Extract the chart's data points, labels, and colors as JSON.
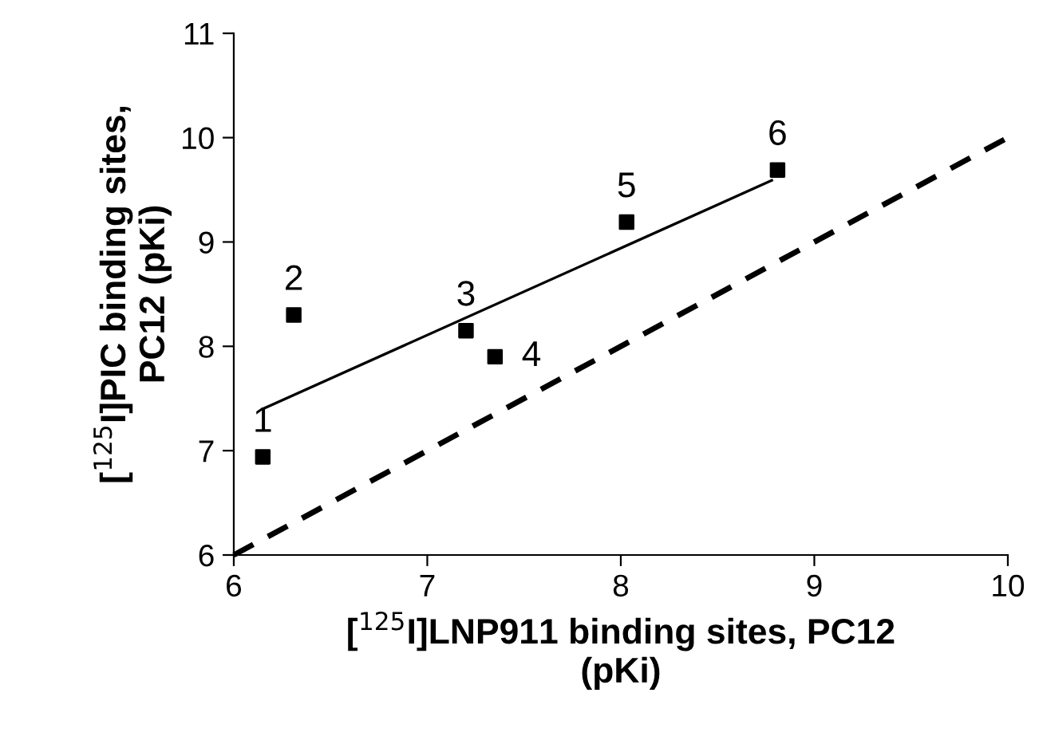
{
  "chart_data": {
    "type": "scatter",
    "xlabel": "[$^{125}$I]LNP911 binding sites, PC12\n(pKi)",
    "ylabel": "[$^{125}$I]PIC binding sites,\nPC12 (pKi)",
    "xlim": [
      6,
      10
    ],
    "ylim": [
      6,
      11
    ],
    "xticks": [
      6,
      7,
      8,
      9,
      10
    ],
    "yticks": [
      6,
      7,
      8,
      9,
      10,
      11
    ],
    "grid": false,
    "legend": false,
    "series": [
      {
        "marker": "square",
        "color": "#000000",
        "x": [
          6.15,
          6.31,
          7.2,
          7.35,
          8.03,
          8.81
        ],
        "values": [
          6.94,
          8.3,
          8.15,
          7.9,
          9.19,
          9.69
        ]
      },
      {
        "type": "line",
        "marker": "none",
        "line_style": "solid",
        "color": "#000000",
        "x": [
          6.15,
          8.78
        ],
        "values": [
          7.4,
          9.59
        ]
      },
      {
        "type": "line",
        "marker": "none",
        "line_style": "dashed",
        "color": "#000000",
        "x": [
          6,
          10
        ],
        "values": [
          6,
          10
        ]
      }
    ],
    "annotations": [
      {
        "text": "1",
        "x": 6.15,
        "y": 6.94
      },
      {
        "text": "2",
        "x": 6.31,
        "y": 8.3
      },
      {
        "text": "3",
        "x": 7.2,
        "y": 8.15
      },
      {
        "text": "4",
        "x": 7.35,
        "y": 7.9
      },
      {
        "text": "5",
        "x": 8.03,
        "y": 9.19
      },
      {
        "text": "6",
        "x": 8.81,
        "y": 9.69
      }
    ]
  }
}
